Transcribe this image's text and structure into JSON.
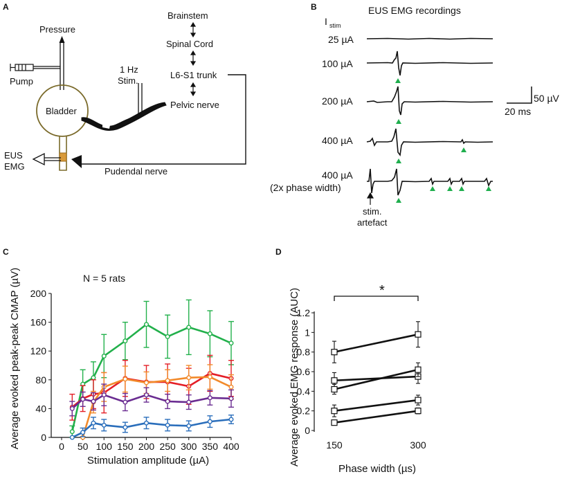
{
  "colors": {
    "green": "#22b04b",
    "red": "#e41e26",
    "orange": "#f28a2b",
    "purple": "#6a2c91",
    "blue": "#2a6ebb",
    "marker_green": "#1fae4d",
    "bladder": "#7a6a2a"
  },
  "panelA": {
    "label": "A",
    "pressure": "Pressure",
    "pump": "Pump",
    "bladder": "Bladder",
    "stim_line1": "1 Hz",
    "stim_line2": "Stim.",
    "brainstem": "Brainstem",
    "spinal_cord": "Spinal Cord",
    "trunk": "L6-S1 trunk",
    "pelvic": "Pelvic nerve",
    "eus": "EUS",
    "emg": "EMG",
    "pudendal": "Pudendal nerve"
  },
  "panelB": {
    "label": "B",
    "title": "EUS EMG recordings",
    "istim_main": "I",
    "istim_sub": "stim",
    "traces": [
      {
        "label": "25 µA"
      },
      {
        "label": "100 µA"
      },
      {
        "label": "200 µA"
      },
      {
        "label": "400 µA"
      },
      {
        "label": "400 µA",
        "sublabel": "(2x phase width)"
      }
    ],
    "scale_v": "50 µV",
    "scale_t": "20 ms",
    "artefact_line1": "stim.",
    "artefact_line2": "artefact"
  },
  "panelC": {
    "label": "C",
    "n_label": "N = 5 rats"
  },
  "panelD": {
    "label": "D",
    "sig": "*"
  },
  "chart_data": [
    {
      "type": "line",
      "xlabel": "Stimulation amplitude (µA)",
      "ylabel": "Average evoked peak-peak CMAP (µV)",
      "xlim": [
        0,
        410
      ],
      "ylim": [
        0,
        200
      ],
      "xticks": [
        0,
        50,
        100,
        150,
        200,
        250,
        300,
        350,
        400
      ],
      "yticks": [
        0,
        40,
        80,
        120,
        160,
        200
      ],
      "series": [
        {
          "name": "rat-green",
          "color": "#22b04b",
          "x": [
            25,
            50,
            75,
            100,
            150,
            200,
            250,
            300,
            350,
            400
          ],
          "y": [
            8,
            74,
            83,
            113,
            134,
            157,
            140,
            153,
            144,
            131
          ],
          "err": [
            8,
            20,
            22,
            30,
            26,
            32,
            30,
            38,
            32,
            30
          ]
        },
        {
          "name": "rat-red",
          "color": "#e41e26",
          "x": [
            25,
            50,
            75,
            100,
            150,
            200,
            250,
            300,
            350,
            400
          ],
          "y": [
            42,
            54,
            60,
            62,
            82,
            77,
            77,
            71,
            89,
            82
          ],
          "err": [
            18,
            18,
            20,
            28,
            25,
            23,
            25,
            25,
            25,
            25
          ]
        },
        {
          "name": "rat-orange",
          "color": "#f28a2b",
          "x": [
            50,
            75,
            100,
            150,
            200,
            250,
            300,
            350,
            400
          ],
          "y": [
            0,
            49,
            70,
            81,
            76,
            79,
            83,
            84,
            70
          ],
          "err": [
            0,
            15,
            20,
            18,
            15,
            15,
            17,
            17,
            17
          ]
        },
        {
          "name": "rat-purple",
          "color": "#6a2c91",
          "x": [
            25,
            50,
            75,
            100,
            150,
            200,
            250,
            300,
            350,
            400
          ],
          "y": [
            40,
            53,
            50,
            59,
            49,
            59,
            50,
            49,
            55,
            54
          ],
          "err": [
            10,
            10,
            12,
            15,
            12,
            10,
            10,
            10,
            10,
            12
          ]
        },
        {
          "name": "rat-blue",
          "color": "#2a6ebb",
          "x": [
            25,
            50,
            75,
            100,
            150,
            200,
            250,
            300,
            350,
            400
          ],
          "y": [
            0,
            7,
            20,
            17,
            14,
            20,
            17,
            16,
            22,
            25
          ],
          "err": [
            0,
            6,
            8,
            8,
            7,
            8,
            8,
            7,
            8,
            6
          ]
        }
      ]
    },
    {
      "type": "line",
      "xlabel": "Phase width (µs)",
      "ylabel": "Average evoked  EMG response (AUC)",
      "categories": [
        "150",
        "300"
      ],
      "ylim": [
        0,
        1.2
      ],
      "yticks": [
        0,
        0.2,
        0.4,
        0.6,
        0.8,
        1,
        1.2
      ],
      "ytick_labels": [
        "0",
        "0.2",
        "0.4",
        "0.6",
        "0.8",
        "1",
        "1.2"
      ],
      "series": [
        {
          "name": "rat1",
          "values": [
            0.8,
            0.98
          ],
          "err": [
            0.11,
            0.13
          ]
        },
        {
          "name": "rat2",
          "values": [
            0.51,
            0.55
          ],
          "err": [
            0.08,
            0.07
          ]
        },
        {
          "name": "rat3",
          "values": [
            0.42,
            0.62
          ],
          "err": [
            0.05,
            0.07
          ]
        },
        {
          "name": "rat4",
          "values": [
            0.2,
            0.31
          ],
          "err": [
            0.06,
            0.05
          ]
        },
        {
          "name": "rat5",
          "values": [
            0.08,
            0.2
          ],
          "err": [
            0.02,
            0.03
          ]
        }
      ]
    }
  ]
}
